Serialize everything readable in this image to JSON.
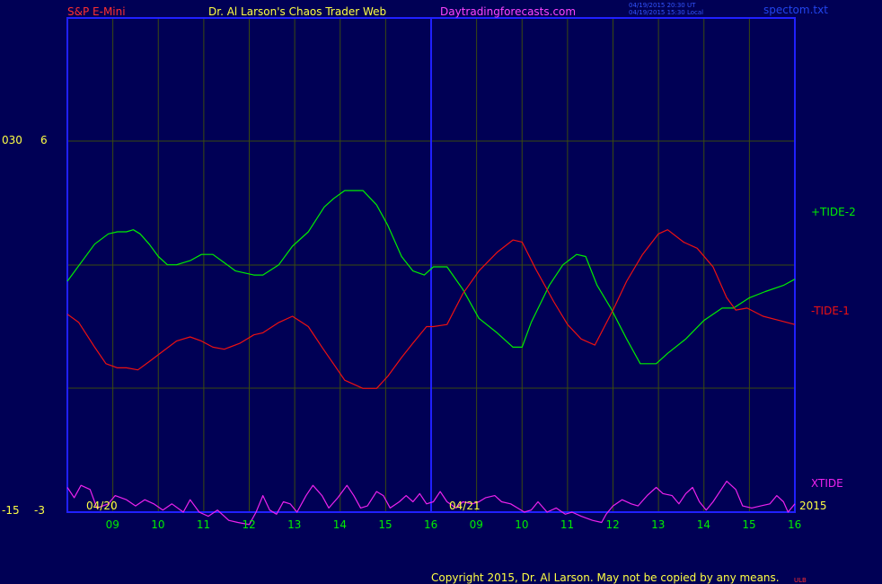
{
  "header": {
    "symbol": "S&P E-Mini",
    "author": "Dr. Al Larson's Chaos Trader Web",
    "site": "Daytradingforecasts.com",
    "stamp_ut": "04/19/2015 20:30 UT",
    "stamp_local": "04/19/2015 15:30 Local",
    "file": "spectom.txt"
  },
  "footer": {
    "copyright": "Copyright 2015, Dr. Al Larson. May not be copied by any means.",
    "mark": "ULB"
  },
  "colors": {
    "background": "#000055",
    "frame": "#2020ff",
    "grid": "#3a4a10",
    "tide_plus": "#00ee00",
    "tide_minus": "#ee1111",
    "xtide": "#ee22ee",
    "text_yellow": "#ffff44",
    "text_red": "#ff3030",
    "text_magenta": "#ff44ff"
  },
  "chart_data": {
    "type": "line",
    "y_labels": [
      {
        "left": "030",
        "right": "6"
      },
      {
        "left": "-15",
        "right": "-3"
      }
    ],
    "date_labels": [
      "04/20",
      "04/21"
    ],
    "year_label": "2015",
    "x_ticks": [
      "09",
      "10",
      "11",
      "12",
      "13",
      "14",
      "15",
      "16",
      "09",
      "10",
      "11",
      "12",
      "13",
      "14",
      "15",
      "16"
    ],
    "x_range": [
      0,
      16
    ],
    "y_range": [
      -3,
      6
    ],
    "day_divider_x": 8,
    "series": [
      {
        "name": "+TIDE-2",
        "points": [
          [
            0,
            2.6
          ],
          [
            0.6,
            3.5
          ],
          [
            0.9,
            3.75
          ],
          [
            1.1,
            3.8
          ],
          [
            1.3,
            3.8
          ],
          [
            1.45,
            3.85
          ],
          [
            1.6,
            3.75
          ],
          [
            1.8,
            3.5
          ],
          [
            2.0,
            3.2
          ],
          [
            2.2,
            3.0
          ],
          [
            2.4,
            3.0
          ],
          [
            2.7,
            3.1
          ],
          [
            2.95,
            3.25
          ],
          [
            3.2,
            3.25
          ],
          [
            3.45,
            3.05
          ],
          [
            3.7,
            2.85
          ],
          [
            4.1,
            2.75
          ],
          [
            4.3,
            2.75
          ],
          [
            4.65,
            3.0
          ],
          [
            4.95,
            3.45
          ],
          [
            5.3,
            3.8
          ],
          [
            5.65,
            4.4
          ],
          [
            5.85,
            4.6
          ],
          [
            6.1,
            4.8
          ],
          [
            6.5,
            4.8
          ],
          [
            6.8,
            4.45
          ],
          [
            7.05,
            3.95
          ],
          [
            7.35,
            3.2
          ],
          [
            7.6,
            2.85
          ],
          [
            7.85,
            2.75
          ],
          [
            8.05,
            2.95
          ],
          [
            8.35,
            2.95
          ],
          [
            8.7,
            2.4
          ],
          [
            9.05,
            1.7
          ],
          [
            9.45,
            1.35
          ],
          [
            9.8,
            1.0
          ],
          [
            10.0,
            1.0
          ],
          [
            10.2,
            1.6
          ],
          [
            10.6,
            2.5
          ],
          [
            10.9,
            3.0
          ],
          [
            11.2,
            3.25
          ],
          [
            11.4,
            3.2
          ],
          [
            11.65,
            2.5
          ],
          [
            11.95,
            1.95
          ],
          [
            12.3,
            1.2
          ],
          [
            12.6,
            0.6
          ],
          [
            12.95,
            0.6
          ],
          [
            13.2,
            0.85
          ],
          [
            13.6,
            1.2
          ],
          [
            14.0,
            1.65
          ],
          [
            14.4,
            1.95
          ],
          [
            14.65,
            1.95
          ],
          [
            15.0,
            2.2
          ],
          [
            15.35,
            2.35
          ],
          [
            15.75,
            2.5
          ],
          [
            16.0,
            2.65
          ]
        ]
      },
      {
        "name": "-TIDE-1",
        "points": [
          [
            0,
            1.8
          ],
          [
            0.25,
            1.6
          ],
          [
            0.6,
            1.0
          ],
          [
            0.85,
            0.6
          ],
          [
            1.1,
            0.5
          ],
          [
            1.3,
            0.5
          ],
          [
            1.55,
            0.45
          ],
          [
            1.8,
            0.65
          ],
          [
            2.1,
            0.9
          ],
          [
            2.4,
            1.15
          ],
          [
            2.7,
            1.25
          ],
          [
            2.95,
            1.15
          ],
          [
            3.2,
            1.0
          ],
          [
            3.45,
            0.95
          ],
          [
            3.8,
            1.1
          ],
          [
            4.1,
            1.3
          ],
          [
            4.3,
            1.35
          ],
          [
            4.65,
            1.6
          ],
          [
            4.95,
            1.75
          ],
          [
            5.3,
            1.5
          ],
          [
            5.6,
            1.0
          ],
          [
            5.85,
            0.6
          ],
          [
            6.1,
            0.2
          ],
          [
            6.5,
            0.0
          ],
          [
            6.8,
            0.0
          ],
          [
            7.05,
            0.3
          ],
          [
            7.35,
            0.75
          ],
          [
            7.6,
            1.1
          ],
          [
            7.9,
            1.5
          ],
          [
            8.05,
            1.5
          ],
          [
            8.35,
            1.55
          ],
          [
            8.7,
            2.3
          ],
          [
            9.05,
            2.85
          ],
          [
            9.45,
            3.3
          ],
          [
            9.8,
            3.6
          ],
          [
            10.0,
            3.55
          ],
          [
            10.3,
            2.9
          ],
          [
            10.7,
            2.1
          ],
          [
            11.0,
            1.55
          ],
          [
            11.3,
            1.2
          ],
          [
            11.6,
            1.05
          ],
          [
            12.0,
            1.9
          ],
          [
            12.3,
            2.6
          ],
          [
            12.65,
            3.25
          ],
          [
            13.0,
            3.75
          ],
          [
            13.2,
            3.85
          ],
          [
            13.55,
            3.55
          ],
          [
            13.85,
            3.4
          ],
          [
            14.2,
            2.95
          ],
          [
            14.5,
            2.2
          ],
          [
            14.7,
            1.9
          ],
          [
            14.95,
            1.95
          ],
          [
            15.3,
            1.75
          ],
          [
            15.65,
            1.65
          ],
          [
            16.0,
            1.55
          ]
        ]
      },
      {
        "name": "XTIDE",
        "points": [
          [
            0,
            -2.4
          ],
          [
            0.15,
            -2.65
          ],
          [
            0.3,
            -2.35
          ],
          [
            0.5,
            -2.45
          ],
          [
            0.65,
            -2.9
          ],
          [
            0.9,
            -2.8
          ],
          [
            1.05,
            -2.6
          ],
          [
            1.3,
            -2.7
          ],
          [
            1.5,
            -2.85
          ],
          [
            1.7,
            -2.7
          ],
          [
            1.9,
            -2.8
          ],
          [
            2.1,
            -2.95
          ],
          [
            2.3,
            -2.8
          ],
          [
            2.55,
            -3.0
          ],
          [
            2.7,
            -2.7
          ],
          [
            2.9,
            -3.0
          ],
          [
            3.1,
            -3.1
          ],
          [
            3.3,
            -2.95
          ],
          [
            3.55,
            -3.2
          ],
          [
            3.75,
            -3.25
          ],
          [
            4.0,
            -3.3
          ],
          [
            4.15,
            -3.0
          ],
          [
            4.3,
            -2.6
          ],
          [
            4.45,
            -2.95
          ],
          [
            4.6,
            -3.05
          ],
          [
            4.75,
            -2.75
          ],
          [
            4.9,
            -2.8
          ],
          [
            5.05,
            -3.0
          ],
          [
            5.25,
            -2.6
          ],
          [
            5.4,
            -2.35
          ],
          [
            5.6,
            -2.6
          ],
          [
            5.75,
            -2.9
          ],
          [
            5.95,
            -2.65
          ],
          [
            6.15,
            -2.35
          ],
          [
            6.3,
            -2.6
          ],
          [
            6.45,
            -2.9
          ],
          [
            6.6,
            -2.85
          ],
          [
            6.8,
            -2.5
          ],
          [
            6.95,
            -2.6
          ],
          [
            7.1,
            -2.9
          ],
          [
            7.3,
            -2.75
          ],
          [
            7.45,
            -2.6
          ],
          [
            7.6,
            -2.75
          ],
          [
            7.75,
            -2.55
          ],
          [
            7.9,
            -2.8
          ],
          [
            8.05,
            -2.75
          ],
          [
            8.2,
            -2.5
          ],
          [
            8.35,
            -2.75
          ],
          [
            8.55,
            -2.9
          ],
          [
            8.7,
            -2.75
          ],
          [
            8.9,
            -2.8
          ],
          [
            9.05,
            -2.75
          ],
          [
            9.2,
            -2.65
          ],
          [
            9.4,
            -2.6
          ],
          [
            9.55,
            -2.75
          ],
          [
            9.75,
            -2.8
          ],
          [
            9.9,
            -2.9
          ],
          [
            10.05,
            -3.0
          ],
          [
            10.2,
            -2.95
          ],
          [
            10.35,
            -2.75
          ],
          [
            10.55,
            -3.0
          ],
          [
            10.75,
            -2.9
          ],
          [
            10.95,
            -3.05
          ],
          [
            11.1,
            -3.0
          ],
          [
            11.3,
            -3.1
          ],
          [
            11.55,
            -3.2
          ],
          [
            11.75,
            -3.25
          ],
          [
            11.85,
            -3.05
          ],
          [
            12.0,
            -2.85
          ],
          [
            12.2,
            -2.7
          ],
          [
            12.4,
            -2.8
          ],
          [
            12.55,
            -2.85
          ],
          [
            12.75,
            -2.6
          ],
          [
            12.95,
            -2.4
          ],
          [
            13.1,
            -2.55
          ],
          [
            13.3,
            -2.6
          ],
          [
            13.45,
            -2.8
          ],
          [
            13.6,
            -2.55
          ],
          [
            13.75,
            -2.4
          ],
          [
            13.9,
            -2.75
          ],
          [
            14.05,
            -2.95
          ],
          [
            14.2,
            -2.75
          ],
          [
            14.35,
            -2.5
          ],
          [
            14.5,
            -2.25
          ],
          [
            14.7,
            -2.45
          ],
          [
            14.85,
            -2.85
          ],
          [
            15.05,
            -2.9
          ],
          [
            15.25,
            -2.85
          ],
          [
            15.45,
            -2.8
          ],
          [
            15.6,
            -2.6
          ],
          [
            15.75,
            -2.75
          ],
          [
            15.85,
            -3.0
          ],
          [
            16.0,
            -2.8
          ]
        ]
      }
    ]
  }
}
